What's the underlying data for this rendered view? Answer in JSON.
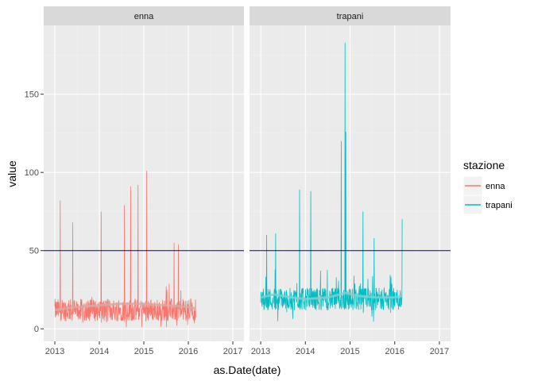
{
  "chart_data": {
    "type": "line",
    "xlabel": "as.Date(date)",
    "ylabel": "value",
    "x_range": [
      "2012-10-01",
      "2017-04-01"
    ],
    "ylim": [
      -8,
      194
    ],
    "x_ticks": [
      "2013",
      "2014",
      "2015",
      "2016",
      "2017"
    ],
    "y_ticks": [
      0,
      50,
      100,
      150
    ],
    "grid": true,
    "hline": 50,
    "hline_color": "#00008b",
    "panel_background": "#ebebeb",
    "strip_background": "#d9d9d9",
    "legend": {
      "title": "stazione",
      "position": "right",
      "entries": [
        {
          "label": "enna",
          "color": "#f8766d"
        },
        {
          "label": "trapani",
          "color": "#00bfc4"
        }
      ]
    },
    "facets": [
      {
        "strip": "enna",
        "series": [
          {
            "color": "#f8766d",
            "x_start": "2013-01-01",
            "x_end": "2016-03-01",
            "baseline": 12,
            "noise": 9,
            "spikes": [
              {
                "x": "2013-02-15",
                "y": 82
              },
              {
                "x": "2013-05-25",
                "y": 68
              },
              {
                "x": "2014-01-15",
                "y": 75
              },
              {
                "x": "2014-07-25",
                "y": 79
              },
              {
                "x": "2014-09-15",
                "y": 91
              },
              {
                "x": "2014-11-15",
                "y": 92
              },
              {
                "x": "2015-01-25",
                "y": 101
              },
              {
                "x": "2015-09-05",
                "y": 55
              },
              {
                "x": "2015-10-10",
                "y": 54
              }
            ]
          },
          {
            "color": "#d9a9a4",
            "x_start": "2013-01-01",
            "x_end": "2016-03-01",
            "smooth": [
              [
                2013.0,
                12
              ],
              [
                2013.5,
                14
              ],
              [
                2014.0,
                15
              ],
              [
                2014.5,
                16
              ],
              [
                2015.0,
                16
              ],
              [
                2015.5,
                15
              ],
              [
                2016.0,
                14
              ],
              [
                2016.17,
                13
              ]
            ]
          }
        ]
      },
      {
        "strip": "trapani",
        "series": [
          {
            "color": "#00bfc4",
            "x_start": "2013-01-01",
            "x_end": "2016-03-01",
            "baseline": 19,
            "noise": 9,
            "spikes": [
              {
                "x": "2013-02-20",
                "y": 60
              },
              {
                "x": "2013-05-01",
                "y": 61
              },
              {
                "x": "2013-11-15",
                "y": 89
              },
              {
                "x": "2014-02-15",
                "y": 88
              },
              {
                "x": "2014-10-20",
                "y": 120
              },
              {
                "x": "2014-11-20",
                "y": 183
              },
              {
                "x": "2014-11-28",
                "y": 126
              },
              {
                "x": "2015-04-15",
                "y": 75
              },
              {
                "x": "2015-07-15",
                "y": 58
              },
              {
                "x": "2016-03-01",
                "y": 70
              }
            ]
          },
          {
            "color": "#7fcfd1",
            "x_start": "2013-01-01",
            "x_end": "2016-03-01",
            "smooth": [
              [
                2013.0,
                20
              ],
              [
                2013.3,
                22
              ],
              [
                2013.7,
                20
              ],
              [
                2014.0,
                19
              ],
              [
                2014.5,
                20
              ],
              [
                2014.9,
                23
              ],
              [
                2015.2,
                21
              ],
              [
                2015.6,
                20
              ],
              [
                2016.0,
                20
              ],
              [
                2016.17,
                21
              ]
            ]
          }
        ]
      }
    ]
  }
}
